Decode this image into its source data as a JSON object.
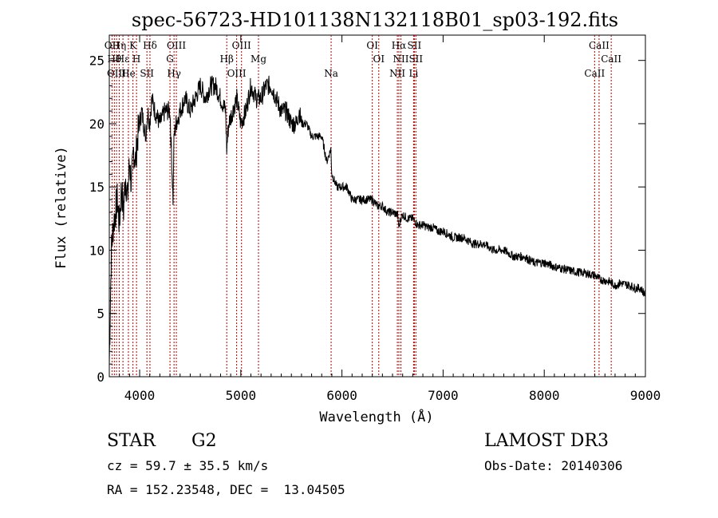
{
  "chart_data": {
    "type": "line",
    "title": "spec-56723-HD101138N132118B01_sp03-192.fits",
    "xlabel": "Wavelength (Å)",
    "ylabel": "Flux (relative)",
    "xlim": [
      3700,
      9000
    ],
    "ylim": [
      0,
      27
    ],
    "xticks": [
      4000,
      5000,
      6000,
      7000,
      8000,
      9000
    ],
    "yticks": [
      0,
      5,
      10,
      15,
      20,
      25
    ],
    "grid": false,
    "series": [
      {
        "x": [
          3700,
          3720,
          3740,
          3760,
          3780,
          3800,
          3820,
          3840,
          3860,
          3880,
          3900,
          3920,
          3940,
          3960,
          3980,
          4000,
          4020,
          4040,
          4060,
          4080,
          4100,
          4120,
          4150,
          4200,
          4250,
          4300,
          4330,
          4340,
          4360,
          4400,
          4450,
          4500,
          4550,
          4600,
          4650,
          4700,
          4750,
          4800,
          4850,
          4861,
          4880,
          4920,
          4960,
          5000,
          5050,
          5100,
          5150,
          5200,
          5250,
          5300,
          5350,
          5400,
          5450,
          5500,
          5550,
          5577,
          5600,
          5650,
          5700,
          5750,
          5800,
          5850,
          5890,
          5900,
          5950,
          6000,
          6050,
          6100,
          6150,
          6200,
          6250,
          6300,
          6350,
          6400,
          6450,
          6500,
          6550,
          6563,
          6580,
          6600,
          6650,
          6700,
          6750,
          6800,
          6850,
          6900,
          6950,
          7000,
          7100,
          7200,
          7300,
          7400,
          7500,
          7600,
          7700,
          7800,
          7900,
          8000,
          8100,
          8200,
          8300,
          8400,
          8500,
          8550,
          8600,
          8650,
          8700,
          8750,
          8800,
          8850,
          8900,
          8950,
          9000
        ],
        "y": [
          1,
          10,
          12,
          13,
          14,
          12,
          15,
          13,
          16,
          14,
          17,
          15,
          18,
          17,
          19,
          20,
          21,
          20,
          19,
          21,
          20,
          22,
          21,
          20,
          21,
          21,
          14,
          19,
          20,
          21,
          22,
          21,
          22,
          23,
          22,
          23,
          23,
          22,
          21,
          18,
          20,
          21,
          22,
          20,
          21,
          23,
          22,
          22,
          23,
          23,
          22,
          21,
          21,
          20,
          20,
          21,
          20,
          20,
          19,
          19,
          19,
          17,
          18,
          16,
          15,
          15,
          15,
          14,
          14,
          14,
          14,
          14,
          13.5,
          13.5,
          13,
          13,
          12.8,
          11.8,
          12.5,
          12.8,
          12.5,
          12.5,
          12,
          12,
          11.8,
          11.8,
          11.5,
          11.5,
          11,
          11,
          10.5,
          10.5,
          10,
          10,
          9.5,
          9.5,
          9,
          9,
          8.7,
          8.5,
          8.3,
          8.2,
          8,
          7.7,
          7.6,
          7.5,
          7.2,
          7.4,
          7.3,
          7.2,
          7,
          7,
          6.5
        ]
      }
    ],
    "lines": [
      {
        "wave": 3727,
        "label": "OII"
      },
      {
        "wave": 3750,
        "label": "Hθ"
      },
      {
        "wave": 3771,
        "label": "OIII"
      },
      {
        "wave": 3798,
        "label": "Hη"
      },
      {
        "wave": 3835,
        "label": "Hε"
      },
      {
        "wave": 3889,
        "label": "He"
      },
      {
        "wave": 3934,
        "label": "K"
      },
      {
        "wave": 3969,
        "label": "H"
      },
      {
        "wave": 4072,
        "label": "SII"
      },
      {
        "wave": 4102,
        "label": "Hδ"
      },
      {
        "wave": 4300,
        "label": "G"
      },
      {
        "wave": 4340,
        "label": "Hγ"
      },
      {
        "wave": 4363,
        "label": "OIII"
      },
      {
        "wave": 4861,
        "label": "Hβ"
      },
      {
        "wave": 4959,
        "label": "OIII"
      },
      {
        "wave": 5007,
        "label": "OIII"
      },
      {
        "wave": 5175,
        "label": "Mg"
      },
      {
        "wave": 5893,
        "label": "Na"
      },
      {
        "wave": 6300,
        "label": "OI"
      },
      {
        "wave": 6364,
        "label": "OI"
      },
      {
        "wave": 6548,
        "label": "NII"
      },
      {
        "wave": 6563,
        "label": "Hα"
      },
      {
        "wave": 6583,
        "label": "NII"
      },
      {
        "wave": 6708,
        "label": "Li"
      },
      {
        "wave": 6716,
        "label": "SII"
      },
      {
        "wave": 6731,
        "label": "SII"
      },
      {
        "wave": 8498,
        "label": "CaII"
      },
      {
        "wave": 8542,
        "label": "CaII"
      },
      {
        "wave": 8662,
        "label": "CaII"
      }
    ]
  },
  "info": {
    "object_type": "STAR",
    "subclass": "G2",
    "survey": "LAMOST DR3",
    "cz": "cz = 59.7 ± 35.5 km/s",
    "obs_date": "Obs-Date: 20140306",
    "coords": "RA = 152.23548, DEC =  13.04505"
  }
}
